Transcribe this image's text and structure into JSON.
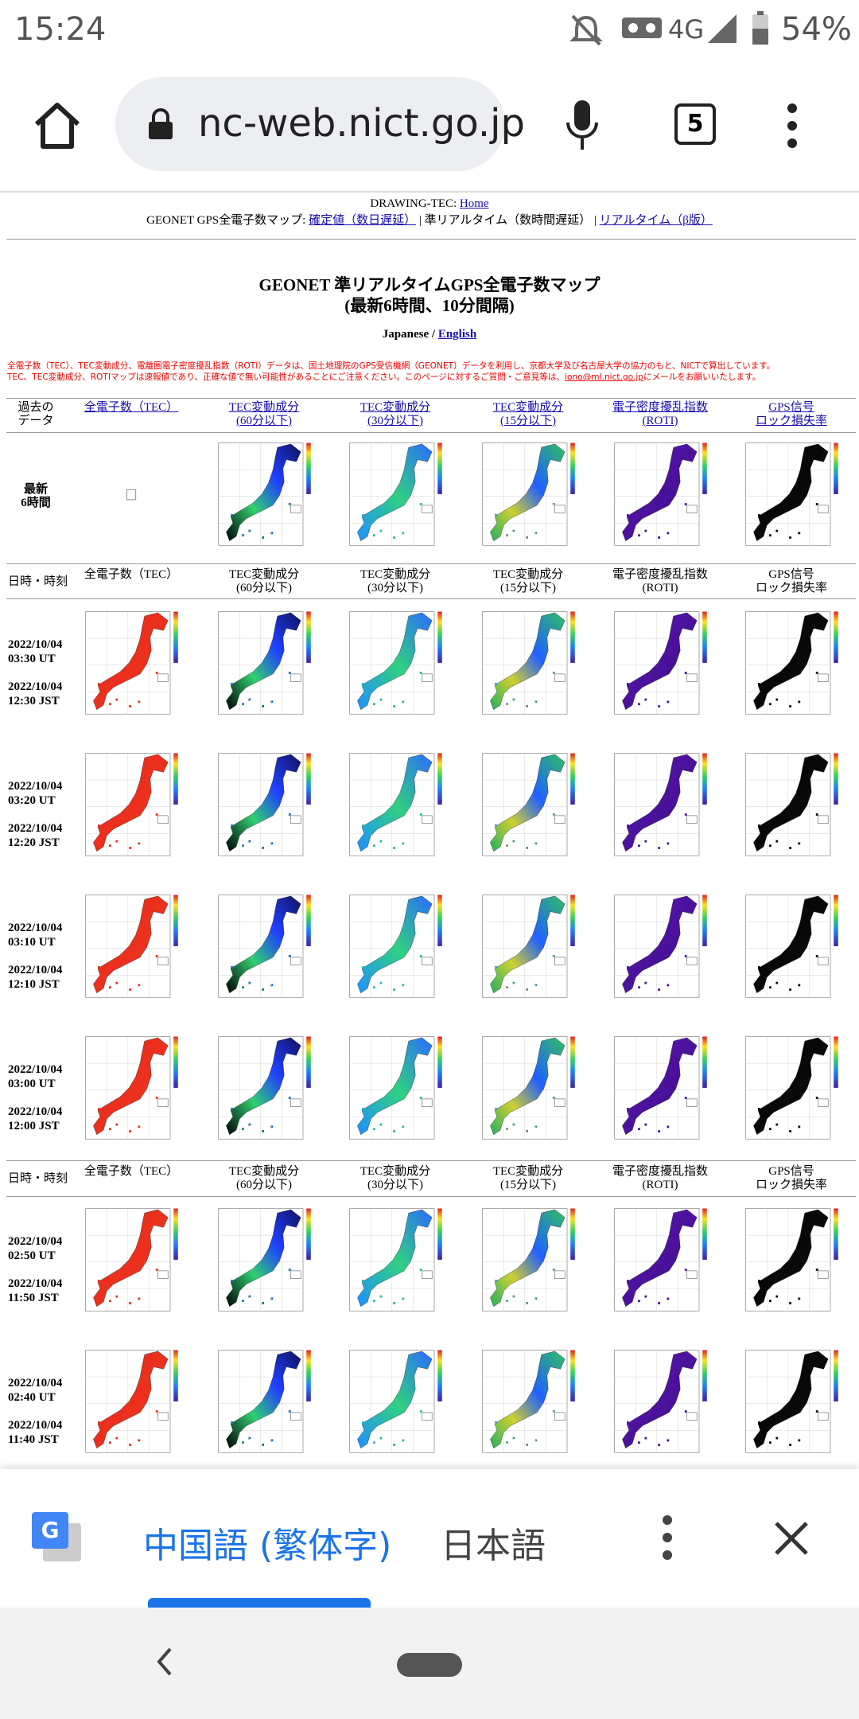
{
  "status_bar": {
    "time": "15:24",
    "network": "4G",
    "battery": "54%"
  },
  "browser": {
    "url": "nc-web.nict.go.jp",
    "tab_count": "5"
  },
  "page": {
    "nav": {
      "line1_prefix": "DRAWING-TEC: ",
      "home": "Home",
      "line2_prefix": "GEONET GPS全電子数マップ: ",
      "link_confirmed": "確定値（数日遅延）",
      "middle": " | 準リアルタイム（数時間遅延） | ",
      "link_realtime": "リアルタイム（β版）"
    },
    "title_line1": "GEONET 準リアルタイムGPS全電子数マップ",
    "title_line2": "(最新6時間、10分間隔)",
    "lang_japanese": "Japanese",
    "lang_sep": " / ",
    "lang_english": "English",
    "notice_line1": "全電子数（TEC）、TEC変動成分、電離圏電子密度擾乱指数（ROTI）データは、国土地理院のGPS受信機網（GEONET）データを利用し、京都大学及び名古屋大学の協力のもと、NICTで算出しています。",
    "notice_line2": "TEC、TEC変動成分、ROTIマップは速報値であり、正確な値で無い可能性があることにご注意ください。このページに対するご質問・ご意見等は、",
    "notice_email": "iono@ml.nict.go.jp",
    "notice_end": "にメールをお願いいたします。",
    "table": {
      "header": [
        [
          "過去の",
          "データ"
        ],
        [
          "全電子数（TEC）"
        ],
        [
          "TEC変動成分",
          "(60分以下)"
        ],
        [
          "TEC変動成分",
          "(30分以下)"
        ],
        [
          "TEC変動成分",
          "(15分以下)"
        ],
        [
          "電子密度擾乱指数",
          "(ROTI)"
        ],
        [
          "GPS信号",
          "ロック損失率"
        ]
      ],
      "latest_label": [
        "最新",
        "6時間"
      ],
      "subheader": [
        [
          "日時・時刻"
        ],
        [
          "全電子数（TEC）"
        ],
        [
          "TEC変動成分",
          "(60分以下)"
        ],
        [
          "TEC変動成分",
          "(30分以下)"
        ],
        [
          "TEC変動成分",
          "(15分以下)"
        ],
        [
          "電子密度擾乱指数",
          "(ROTI)"
        ],
        [
          "GPS信号",
          "ロック損失率"
        ]
      ],
      "rows": [
        {
          "ut_date": "2022/10/04",
          "ut": "03:30 UT",
          "jst_date": "2022/10/04",
          "jst": "12:30 JST"
        },
        {
          "ut_date": "2022/10/04",
          "ut": "03:20 UT",
          "jst_date": "2022/10/04",
          "jst": "12:20 JST"
        },
        {
          "ut_date": "2022/10/04",
          "ut": "03:10 UT",
          "jst_date": "2022/10/04",
          "jst": "12:10 JST"
        },
        {
          "ut_date": "2022/10/04",
          "ut": "03:00 UT",
          "jst_date": "2022/10/04",
          "jst": "12:00 JST"
        },
        {
          "ut_date": "2022/10/04",
          "ut": "02:50 UT",
          "jst_date": "2022/10/04",
          "jst": "11:50 JST"
        },
        {
          "ut_date": "2022/10/04",
          "ut": "02:40 UT",
          "jst_date": "2022/10/04",
          "jst": "11:40 JST"
        }
      ]
    }
  },
  "translate_bar": {
    "source": "中国語 (繁体字)",
    "target": "日本語"
  }
}
